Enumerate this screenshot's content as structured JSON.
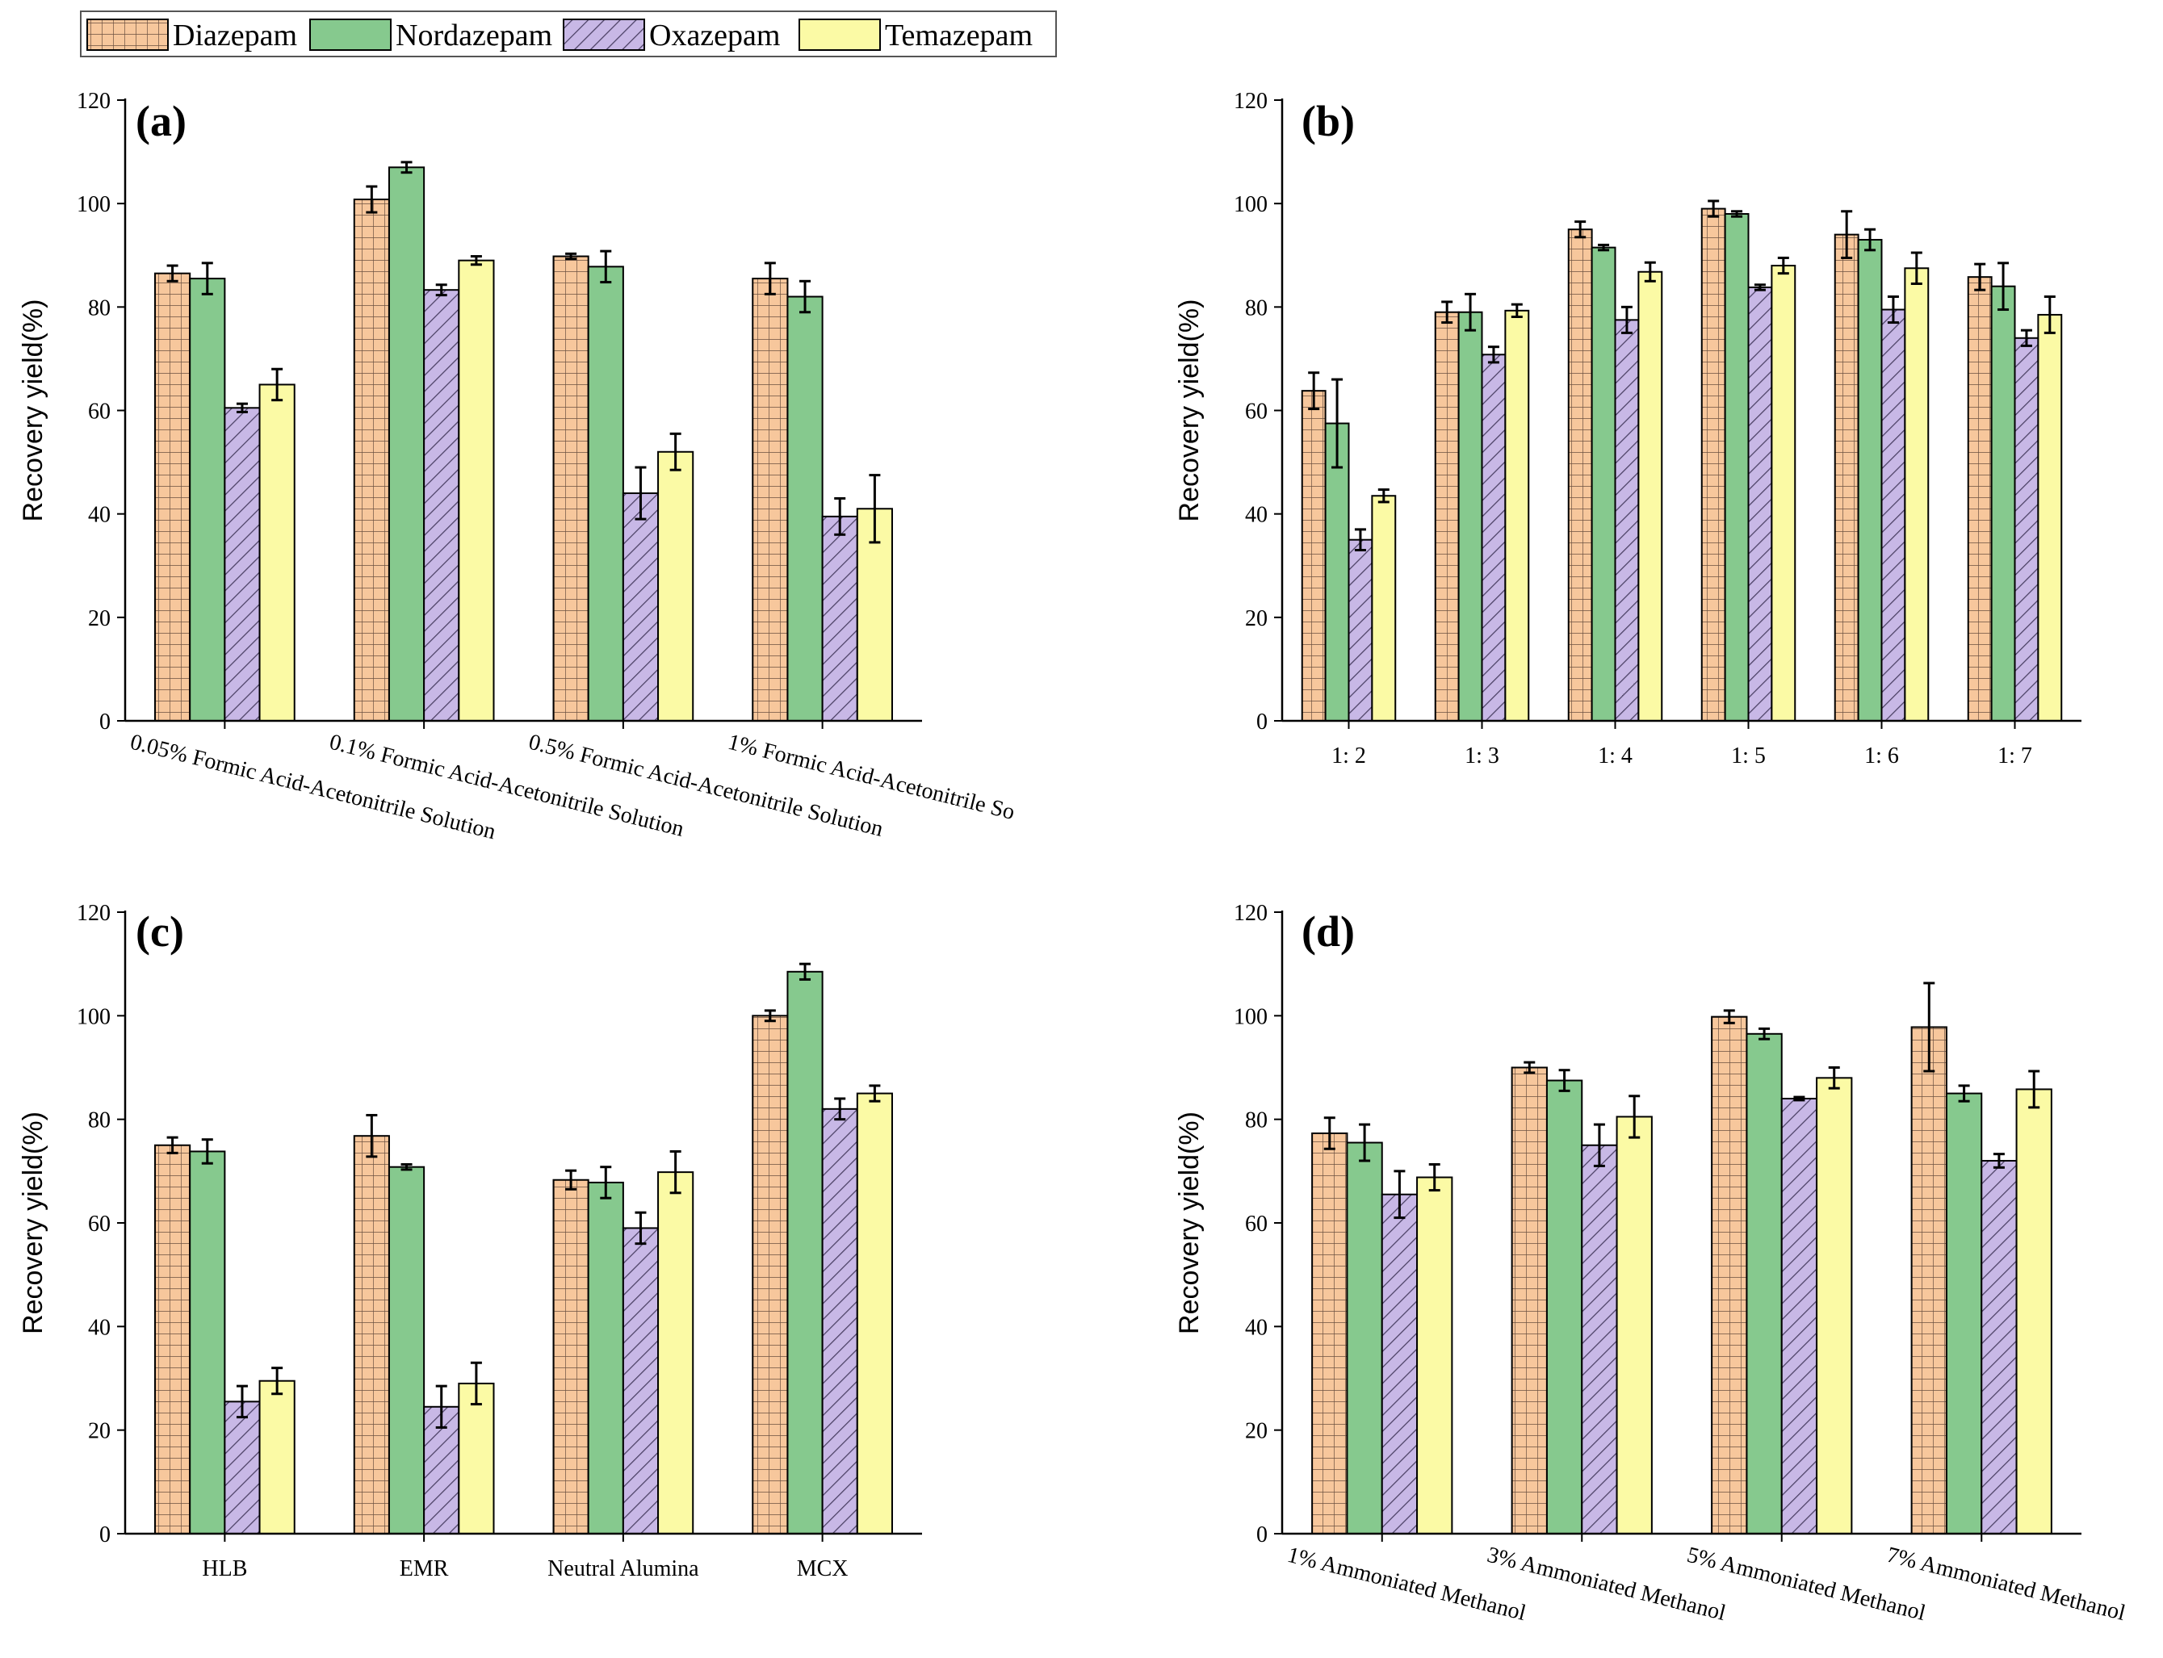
{
  "legend": [
    {
      "name": "Diazepam",
      "color": "#f7c79c",
      "pattern": "grid"
    },
    {
      "name": "Nordazepam",
      "color": "#86c98e",
      "pattern": "solid"
    },
    {
      "name": "Oxazepam",
      "color": "#c8b8e6",
      "pattern": "hatch"
    },
    {
      "name": "Temazepam",
      "color": "#fbfaa5",
      "pattern": "solid"
    }
  ],
  "chart_data": [
    {
      "type": "bar",
      "label": "(a)",
      "ylabel": "Recovery yield(%)",
      "ylim": [
        0,
        120
      ],
      "yticks": [
        0,
        20,
        40,
        60,
        80,
        100,
        120
      ],
      "categories": [
        "0.05% Formic Acid-Acetonitrile Solution",
        "0.1% Formic Acid-Acetonitrile Solution",
        "0.5% Formic Acid-Acetonitrile Solution",
        "1% Formic Acid-Acetonitrile So"
      ],
      "category_rotated": true,
      "series": [
        {
          "name": "Diazepam",
          "values": [
            86.5,
            100.8,
            89.8,
            85.5
          ],
          "errors": [
            1.5,
            2.5,
            0.5,
            3.0
          ]
        },
        {
          "name": "Nordazepam",
          "values": [
            85.5,
            107.0,
            87.8,
            82.0
          ],
          "errors": [
            3.0,
            1.0,
            3.0,
            3.0
          ]
        },
        {
          "name": "Oxazepam",
          "values": [
            60.5,
            83.3,
            44.0,
            39.5
          ],
          "errors": [
            0.8,
            1.0,
            5.0,
            3.5
          ]
        },
        {
          "name": "Temazepam",
          "values": [
            65.0,
            89.0,
            52.0,
            41.0
          ],
          "errors": [
            3.0,
            0.8,
            3.5,
            6.5
          ]
        }
      ]
    },
    {
      "type": "bar",
      "label": "(b)",
      "ylabel": "Recovery yield(%)",
      "ylim": [
        0,
        120
      ],
      "yticks": [
        0,
        20,
        40,
        60,
        80,
        100,
        120
      ],
      "categories": [
        "1: 2",
        "1: 3",
        "1: 4",
        "1: 5",
        "1: 6",
        "1: 7"
      ],
      "category_rotated": false,
      "series": [
        {
          "name": "Diazepam",
          "values": [
            63.8,
            79.0,
            95.0,
            99.0,
            94.0,
            85.8
          ],
          "errors": [
            3.5,
            2.0,
            1.5,
            1.5,
            4.5,
            2.5
          ]
        },
        {
          "name": "Nordazepam",
          "values": [
            57.5,
            79.0,
            91.5,
            98.0,
            93.0,
            84.0
          ],
          "errors": [
            8.5,
            3.5,
            0.5,
            0.5,
            2.0,
            4.5
          ]
        },
        {
          "name": "Oxazepam",
          "values": [
            35.0,
            70.8,
            77.5,
            83.8,
            79.5,
            74.0
          ],
          "errors": [
            2.0,
            1.5,
            2.5,
            0.5,
            2.5,
            1.5
          ]
        },
        {
          "name": "Temazepam",
          "values": [
            43.5,
            79.3,
            86.8,
            88.0,
            87.5,
            78.5
          ],
          "errors": [
            1.2,
            1.2,
            1.8,
            1.5,
            3.0,
            3.5
          ]
        }
      ]
    },
    {
      "type": "bar",
      "label": "(c)",
      "ylabel": "Recovery yield(%)",
      "ylim": [
        0,
        120
      ],
      "yticks": [
        0,
        20,
        40,
        60,
        80,
        100,
        120
      ],
      "categories": [
        "HLB",
        "EMR",
        "Neutral Alumina",
        "MCX"
      ],
      "category_rotated": false,
      "series": [
        {
          "name": "Diazepam",
          "values": [
            75.0,
            76.8,
            68.3,
            100.0
          ],
          "errors": [
            1.5,
            4.0,
            1.8,
            1.0
          ]
        },
        {
          "name": "Nordazepam",
          "values": [
            73.8,
            70.8,
            67.8,
            108.5
          ],
          "errors": [
            2.3,
            0.5,
            3.0,
            1.5
          ]
        },
        {
          "name": "Oxazepam",
          "values": [
            25.5,
            24.5,
            59.0,
            82.0
          ],
          "errors": [
            3.0,
            4.0,
            3.0,
            2.0
          ]
        },
        {
          "name": "Temazepam",
          "values": [
            29.5,
            29.0,
            69.8,
            85.0
          ],
          "errors": [
            2.5,
            4.0,
            4.0,
            1.5
          ]
        }
      ]
    },
    {
      "type": "bar",
      "label": "(d)",
      "ylabel": "Recovery yield(%)",
      "ylim": [
        0,
        120
      ],
      "yticks": [
        0,
        20,
        40,
        60,
        80,
        100,
        120
      ],
      "categories": [
        "1% Ammoniated Methanol",
        "3% Ammoniated Methanol",
        "5% Ammoniated Methanol",
        "7% Ammoniated Methanol"
      ],
      "category_rotated": true,
      "series": [
        {
          "name": "Diazepam",
          "values": [
            77.3,
            90.0,
            99.8,
            97.8
          ],
          "errors": [
            3.0,
            1.0,
            1.2,
            8.5
          ]
        },
        {
          "name": "Nordazepam",
          "values": [
            75.5,
            87.5,
            96.5,
            85.0
          ],
          "errors": [
            3.5,
            2.0,
            1.0,
            1.5
          ]
        },
        {
          "name": "Oxazepam",
          "values": [
            65.5,
            75.0,
            84.0,
            72.0
          ],
          "errors": [
            4.5,
            4.0,
            0.3,
            1.3
          ]
        },
        {
          "name": "Temazepam",
          "values": [
            68.8,
            80.5,
            88.0,
            85.8
          ],
          "errors": [
            2.5,
            4.0,
            2.0,
            3.5
          ]
        }
      ]
    }
  ]
}
